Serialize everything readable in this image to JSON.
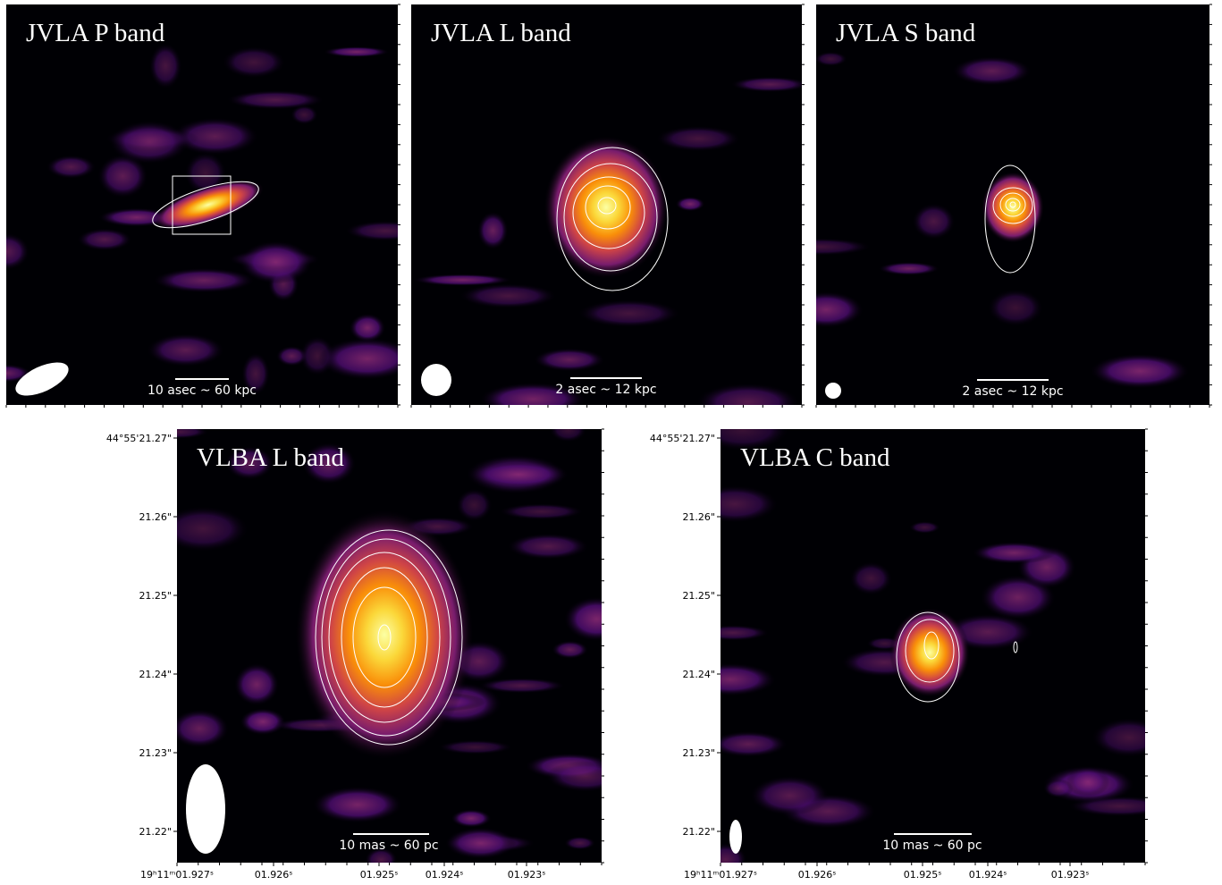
{
  "panels": [
    {
      "title": "JVLA P band",
      "scale_label": "10 asec ~ 60 kpc"
    },
    {
      "title": "JVLA L band",
      "scale_label": "2 asec ~ 12 kpc"
    },
    {
      "title": "JVLA S band",
      "scale_label": "2 asec ~ 12 kpc"
    },
    {
      "title": "VLBA L band",
      "scale_label": "10 mas ~ 60 pc",
      "y_tick_labels": [
        "44°55'21.27\"",
        "21.26\"",
        "21.25\"",
        "21.24\"",
        "21.23\"",
        "21.22\""
      ],
      "x_tick_labels": [
        "19ʰ11ᵐ01.927ˢ",
        "01.926ˢ",
        "01.925ˢ",
        "01.924ˢ",
        "01.923ˢ"
      ]
    },
    {
      "title": "VLBA C band",
      "scale_label": "10 mas ~ 60 pc",
      "y_tick_labels": [
        "44°55'21.27\"",
        "21.26\"",
        "21.25\"",
        "21.24\"",
        "21.23\"",
        "21.22\""
      ],
      "x_tick_labels": [
        "19ʰ11ᵐ01.927ˢ",
        "01.926ˢ",
        "01.925ˢ",
        "01.924ˢ",
        "01.923ˢ"
      ]
    }
  ]
}
